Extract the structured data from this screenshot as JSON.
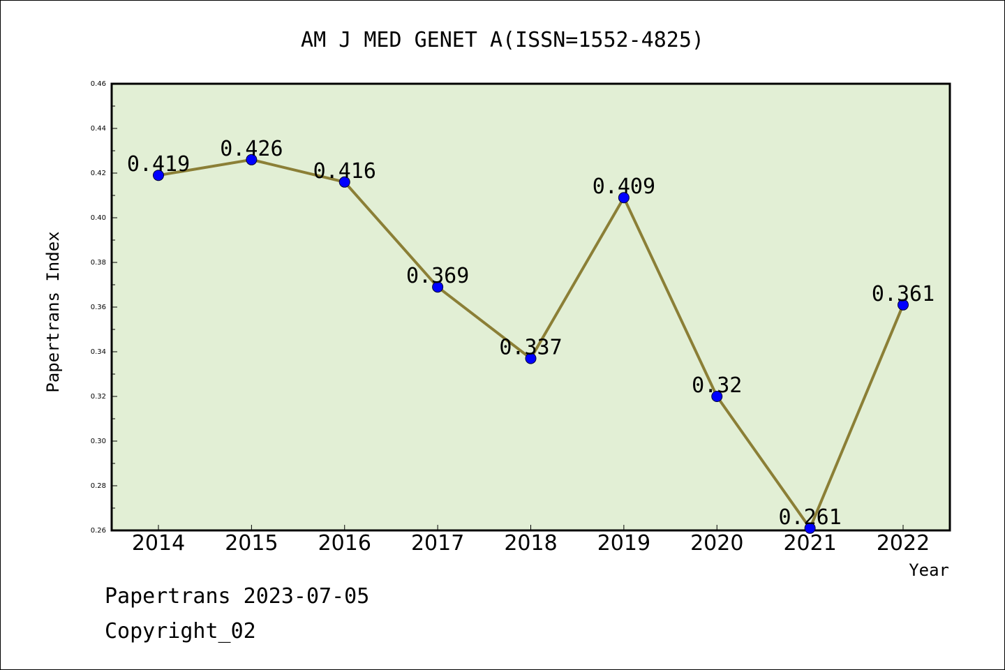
{
  "chart_data": {
    "type": "line",
    "title": "AM J MED GENET A(ISSN=1552-4825)",
    "xlabel": "Year",
    "ylabel": "Papertrans Index",
    "categories": [
      "2014",
      "2015",
      "2016",
      "2017",
      "2018",
      "2019",
      "2020",
      "2021",
      "2022"
    ],
    "series": [
      {
        "values": [
          0.419,
          0.426,
          0.416,
          0.369,
          0.337,
          0.409,
          0.32,
          0.261,
          0.361
        ],
        "labels": [
          "0.419",
          "0.426",
          "0.416",
          "0.369",
          "0.337",
          "0.409",
          "0.32",
          "0.261",
          "0.361"
        ]
      }
    ],
    "ylim": [
      0.26,
      0.46
    ],
    "yticks": [
      "0.26",
      "0.28",
      "0.30",
      "0.32",
      "0.34",
      "0.36",
      "0.38",
      "0.40",
      "0.42",
      "0.44",
      "0.46"
    ],
    "grid": false,
    "colors": {
      "plot_background": "#e2efd5",
      "line": "#8b7f36",
      "marker": "#0000ff"
    }
  },
  "footer": {
    "line1": "Papertrans 2023-07-05",
    "line2": "Copyright_02"
  }
}
